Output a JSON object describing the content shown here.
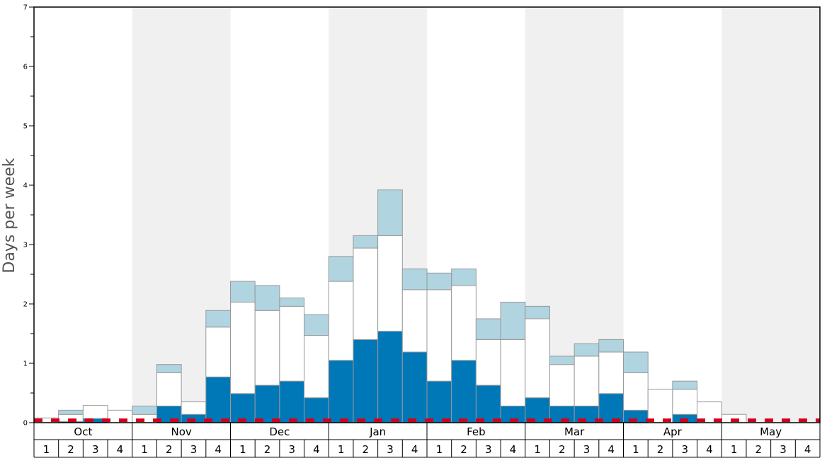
{
  "chart_data": {
    "type": "bar",
    "ylabel": "Days per week",
    "ylim": [
      0,
      7
    ],
    "y_ticks": [
      "0",
      "1",
      "2",
      "3",
      "4",
      "5",
      "6",
      "7"
    ],
    "months": [
      "Oct",
      "Nov",
      "Dec",
      "Jan",
      "Feb",
      "Mar",
      "Apr",
      "May"
    ],
    "week_labels": [
      "1",
      "2",
      "3",
      "4"
    ],
    "stack_order": [
      "dark",
      "white",
      "light"
    ],
    "colors": {
      "dark": "#0077b6",
      "white": "#ffffff",
      "light": "#b0d4e0",
      "bar_stroke": "#999999",
      "dashed_line": "#d0021b",
      "band": "#f0f0f0"
    },
    "dashed_line_value": 0.04,
    "weeks": [
      {
        "dark": 0.0,
        "white": 0.08,
        "light": 0.0
      },
      {
        "dark": 0.02,
        "white": 0.12,
        "light": 0.07
      },
      {
        "dark": 0.07,
        "white": 0.22,
        "light": 0.0
      },
      {
        "dark": 0.0,
        "white": 0.21,
        "light": 0.0
      },
      {
        "dark": 0.0,
        "white": 0.14,
        "light": 0.14
      },
      {
        "dark": 0.28,
        "white": 0.56,
        "light": 0.14
      },
      {
        "dark": 0.14,
        "white": 0.21,
        "light": 0.0
      },
      {
        "dark": 0.77,
        "white": 0.84,
        "light": 0.28
      },
      {
        "dark": 0.49,
        "white": 1.54,
        "light": 0.35
      },
      {
        "dark": 0.63,
        "white": 1.26,
        "light": 0.42
      },
      {
        "dark": 0.7,
        "white": 1.26,
        "light": 0.14
      },
      {
        "dark": 0.42,
        "white": 1.05,
        "light": 0.35
      },
      {
        "dark": 1.05,
        "white": 1.33,
        "light": 0.42
      },
      {
        "dark": 1.4,
        "white": 1.54,
        "light": 0.21
      },
      {
        "dark": 1.54,
        "white": 1.61,
        "light": 0.77
      },
      {
        "dark": 1.19,
        "white": 1.05,
        "light": 0.35
      },
      {
        "dark": 0.7,
        "white": 1.54,
        "light": 0.28
      },
      {
        "dark": 1.05,
        "white": 1.26,
        "light": 0.28
      },
      {
        "dark": 0.63,
        "white": 0.77,
        "light": 0.35
      },
      {
        "dark": 0.28,
        "white": 1.12,
        "light": 0.63
      },
      {
        "dark": 0.42,
        "white": 1.33,
        "light": 0.21
      },
      {
        "dark": 0.28,
        "white": 0.7,
        "light": 0.14
      },
      {
        "dark": 0.28,
        "white": 0.84,
        "light": 0.21
      },
      {
        "dark": 0.49,
        "white": 0.7,
        "light": 0.21
      },
      {
        "dark": 0.21,
        "white": 0.63,
        "light": 0.35
      },
      {
        "dark": 0.0,
        "white": 0.56,
        "light": 0.0
      },
      {
        "dark": 0.14,
        "white": 0.42,
        "light": 0.14
      },
      {
        "dark": 0.0,
        "white": 0.35,
        "light": 0.0
      },
      {
        "dark": 0.0,
        "white": 0.14,
        "light": 0.0
      },
      {
        "dark": 0.0,
        "white": 0.0,
        "light": 0.0
      },
      {
        "dark": 0.0,
        "white": 0.0,
        "light": 0.0
      },
      {
        "dark": 0.0,
        "white": 0.0,
        "light": 0.0
      }
    ]
  }
}
